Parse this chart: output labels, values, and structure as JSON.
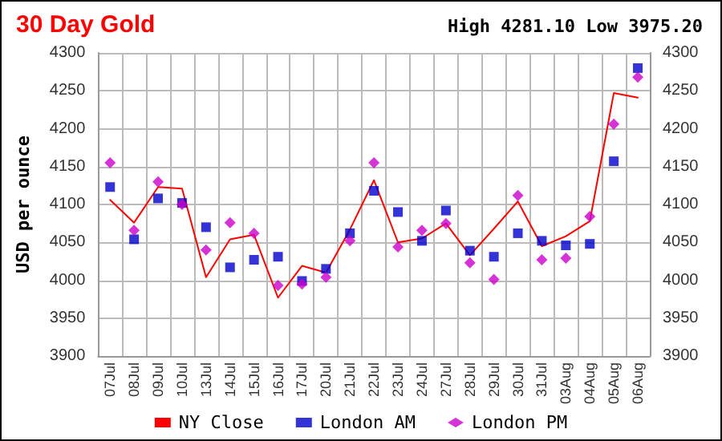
{
  "chart_data": {
    "type": "line",
    "title": "30 Day Gold",
    "annotations": [
      "High 4281.10 Low 3975.20"
    ],
    "ylabel": "USD per ounce",
    "categories": [
      "07Jul",
      "08Jul",
      "09Jul",
      "10Jul",
      "13Jul",
      "14Jul",
      "15Jul",
      "16Jul",
      "17Jul",
      "20Jul",
      "21Jul",
      "22Jul",
      "23Jul",
      "24Jul",
      "27Jul",
      "28Jul",
      "29Jul",
      "30Jul",
      "31Jul",
      "03Aug",
      "04Aug",
      "05Aug",
      "06Aug"
    ],
    "series": [
      {
        "name": "NY Close",
        "color": "#ff0000",
        "marker": "none",
        "line_style": "solid",
        "values": [
          4106,
          4076,
          4123,
          4121,
          4004,
          4054,
          4060,
          3977,
          4019,
          4010,
          4067,
          4132,
          4050,
          4055,
          4075,
          4033,
          4068,
          4104,
          4045,
          4058,
          4078,
          4247,
          4241
        ]
      },
      {
        "name": "London AM",
        "type": "scatter",
        "color": "#0000cc",
        "marker": "square",
        "values": [
          4123,
          4054,
          4108,
          4102,
          4070,
          4017,
          4027,
          4031,
          3999,
          4015,
          4062,
          4118,
          4090,
          4052,
          4092,
          4039,
          4031,
          4062,
          4052,
          4046,
          4048,
          4157,
          4280
        ]
      },
      {
        "name": "London PM",
        "type": "scatter",
        "color": "#cc00cc",
        "marker": "diamond",
        "values": [
          4155,
          4066,
          4130,
          4100,
          4040,
          4076,
          4062,
          3993,
          3995,
          4004,
          4052,
          4155,
          4044,
          4066,
          4075,
          4023,
          4001,
          4112,
          4027,
          4029,
          4084,
          4206,
          4268
        ]
      }
    ],
    "ylim": [
      3900,
      4300
    ],
    "yticks": [
      3900,
      3950,
      4000,
      4050,
      4100,
      4150,
      4200,
      4250,
      4300
    ],
    "y2lim": [
      3900,
      4300
    ],
    "y2ticks": [
      3900,
      3950,
      4000,
      4050,
      4100,
      4150,
      4200,
      4250,
      4300
    ],
    "grid": true,
    "legend": "bottom"
  }
}
